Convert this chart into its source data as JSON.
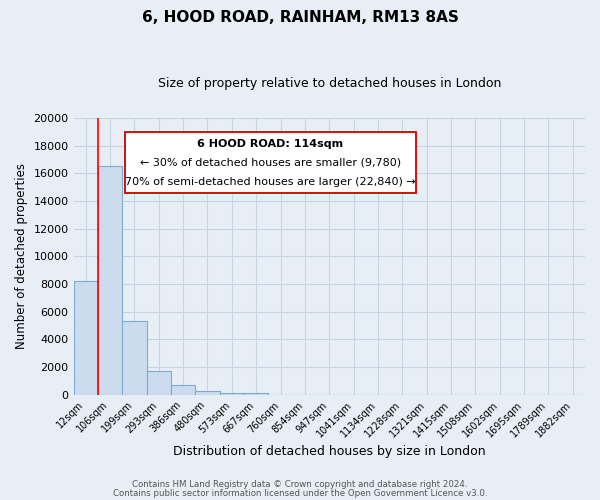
{
  "title": "6, HOOD ROAD, RAINHAM, RM13 8AS",
  "subtitle": "Size of property relative to detached houses in London",
  "xlabel": "Distribution of detached houses by size in London",
  "ylabel": "Number of detached properties",
  "bar_labels": [
    "12sqm",
    "106sqm",
    "199sqm",
    "293sqm",
    "386sqm",
    "480sqm",
    "573sqm",
    "667sqm",
    "760sqm",
    "854sqm",
    "947sqm",
    "1041sqm",
    "1134sqm",
    "1228sqm",
    "1321sqm",
    "1415sqm",
    "1508sqm",
    "1602sqm",
    "1695sqm",
    "1789sqm",
    "1882sqm"
  ],
  "bar_heights": [
    8200,
    16500,
    5300,
    1750,
    700,
    250,
    150,
    100,
    0,
    0,
    0,
    0,
    0,
    0,
    0,
    0,
    0,
    0,
    0,
    0,
    0
  ],
  "bar_color": "#ccdcee",
  "bar_edge_color": "#7aaed0",
  "background_color": "#e8eef5",
  "grid_color": "#c8d4e0",
  "red_line_x": 1.0,
  "ann_line1": "6 HOOD ROAD: 114sqm",
  "ann_line2": "← 30% of detached houses are smaller (9,780)",
  "ann_line3": "70% of semi-detached houses are larger (22,840) →",
  "ylim": [
    0,
    20000
  ],
  "yticks": [
    0,
    2000,
    4000,
    6000,
    8000,
    10000,
    12000,
    14000,
    16000,
    18000,
    20000
  ],
  "footer_line1": "Contains HM Land Registry data © Crown copyright and database right 2024.",
  "footer_line2": "Contains public sector information licensed under the Open Government Licence v3.0.",
  "figsize": [
    6.0,
    5.0
  ],
  "dpi": 100
}
